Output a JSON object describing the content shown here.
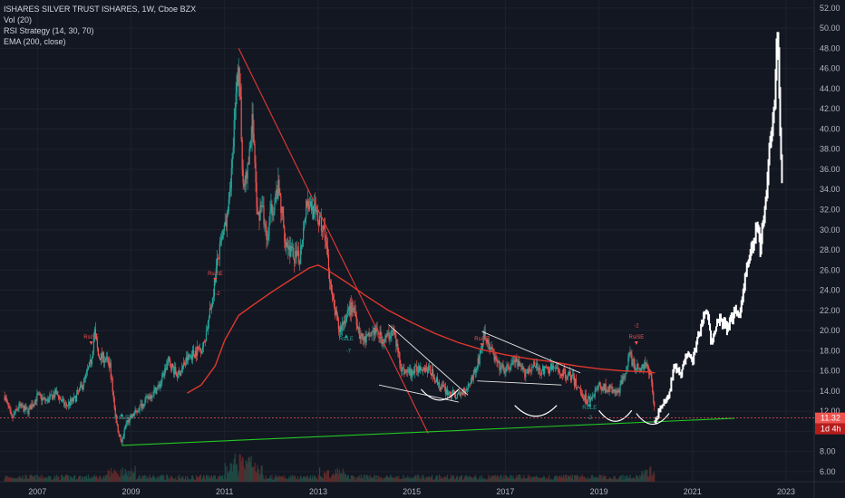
{
  "legend": {
    "title": "ISHARES SILVER TRUST ISHARES, 1W, Cboe BZX",
    "volume": "Vol (20)",
    "strategy": "RSI Strategy (14, 30, 70)",
    "ema": "EMA (200, close)"
  },
  "colors": {
    "background": "#131722",
    "up": "#26a69a",
    "down": "#ef5350",
    "ema": "#e0382b",
    "trend_red": "#e53935",
    "trend_green": "#22c822",
    "pattern": "#e8e8e8",
    "projection": "#ffffff",
    "price_line": "#ef5350"
  },
  "price_axis": {
    "ticks": [
      "52.00",
      "50.00",
      "48.00",
      "46.00",
      "44.00",
      "42.00",
      "40.00",
      "38.00",
      "36.00",
      "34.00",
      "32.00",
      "30.00",
      "28.00",
      "26.00",
      "24.00",
      "22.00",
      "20.00",
      "18.00",
      "16.00",
      "14.00",
      "12.00",
      "10.00",
      "8.00",
      "6.00"
    ],
    "last_price": "11.32",
    "countdown": "1d 4h"
  },
  "time_axis": {
    "ticks": [
      "2007",
      "2009",
      "2011",
      "2013",
      "2015",
      "2017",
      "2019",
      "2021",
      "2023"
    ]
  },
  "signals": [
    {
      "label": "RsiSE",
      "type": "sell",
      "date": 2008.15,
      "price": 19.2
    },
    {
      "label": "RsiLE",
      "type": "buy",
      "date": 2008.8,
      "price": 11.2
    },
    {
      "label": "RsiSE",
      "type": "sell",
      "date": 2010.8,
      "price": 25.5
    },
    {
      "label": "-2",
      "type": "sell",
      "date": 2010.85,
      "price": 23.5
    },
    {
      "label": "RsiLE",
      "type": "buy",
      "date": 2013.6,
      "price": 19.0
    },
    {
      "label": "-7",
      "type": "buy",
      "date": 2013.65,
      "price": 17.8
    },
    {
      "label": "RsiSE",
      "type": "sell",
      "date": 2016.5,
      "price": 19.0
    },
    {
      "label": "RsiLE",
      "type": "buy",
      "date": 2018.8,
      "price": 12.2
    },
    {
      "label": "-2",
      "type": "buy",
      "date": 2018.8,
      "price": 11.2
    },
    {
      "label": "-2",
      "type": "sell",
      "date": 2019.8,
      "price": 20.3
    },
    {
      "label": "RsiSE",
      "type": "sell",
      "date": 2019.8,
      "price": 19.2
    }
  ],
  "chart_data": {
    "type": "candlestick",
    "x_unit": "year",
    "xlim": [
      2006.2,
      2023.6
    ],
    "ylim": [
      5.0,
      52.8
    ],
    "grid": true,
    "series": [
      {
        "name": "ISHARES SILVER TRUST ISHARES",
        "type": "candlestick",
        "close_path": [
          [
            2006.3,
            13.5
          ],
          [
            2006.45,
            11.2
          ],
          [
            2006.6,
            12.5
          ],
          [
            2006.8,
            12.0
          ],
          [
            2007.0,
            13.5
          ],
          [
            2007.2,
            13.0
          ],
          [
            2007.4,
            13.8
          ],
          [
            2007.6,
            12.5
          ],
          [
            2007.8,
            13.2
          ],
          [
            2008.0,
            15.0
          ],
          [
            2008.15,
            17.0
          ],
          [
            2008.22,
            20.0
          ],
          [
            2008.3,
            17.5
          ],
          [
            2008.45,
            17.2
          ],
          [
            2008.55,
            16.5
          ],
          [
            2008.62,
            13.5
          ],
          [
            2008.7,
            10.5
          ],
          [
            2008.8,
            8.8
          ],
          [
            2008.9,
            10.8
          ],
          [
            2009.0,
            11.3
          ],
          [
            2009.2,
            12.5
          ],
          [
            2009.4,
            13.5
          ],
          [
            2009.6,
            14.5
          ],
          [
            2009.8,
            17.0
          ],
          [
            2009.9,
            16.2
          ],
          [
            2010.0,
            15.5
          ],
          [
            2010.2,
            17.2
          ],
          [
            2010.4,
            18.0
          ],
          [
            2010.55,
            18.5
          ],
          [
            2010.7,
            22.0
          ],
          [
            2010.85,
            27.0
          ],
          [
            2011.0,
            30.0
          ],
          [
            2011.15,
            36.0
          ],
          [
            2011.3,
            47.0
          ],
          [
            2011.4,
            34.0
          ],
          [
            2011.5,
            36.0
          ],
          [
            2011.6,
            41.0
          ],
          [
            2011.7,
            31.0
          ],
          [
            2011.8,
            33.0
          ],
          [
            2011.9,
            28.5
          ],
          [
            2012.0,
            32.0
          ],
          [
            2012.15,
            34.0
          ],
          [
            2012.3,
            29.0
          ],
          [
            2012.45,
            27.5
          ],
          [
            2012.6,
            27.0
          ],
          [
            2012.75,
            33.0
          ],
          [
            2012.9,
            32.0
          ],
          [
            2013.0,
            31.0
          ],
          [
            2013.15,
            29.5
          ],
          [
            2013.3,
            23.0
          ],
          [
            2013.45,
            20.0
          ],
          [
            2013.6,
            21.5
          ],
          [
            2013.75,
            22.5
          ],
          [
            2013.9,
            19.5
          ],
          [
            2014.0,
            19.0
          ],
          [
            2014.2,
            20.0
          ],
          [
            2014.4,
            19.0
          ],
          [
            2014.6,
            20.0
          ],
          [
            2014.8,
            16.0
          ],
          [
            2015.0,
            15.8
          ],
          [
            2015.2,
            16.5
          ],
          [
            2015.4,
            16.0
          ],
          [
            2015.6,
            14.5
          ],
          [
            2015.8,
            13.8
          ],
          [
            2016.0,
            13.5
          ],
          [
            2016.2,
            14.5
          ],
          [
            2016.4,
            16.5
          ],
          [
            2016.55,
            19.5
          ],
          [
            2016.7,
            18.0
          ],
          [
            2016.85,
            16.5
          ],
          [
            2017.0,
            16.0
          ],
          [
            2017.2,
            17.0
          ],
          [
            2017.4,
            15.8
          ],
          [
            2017.6,
            16.5
          ],
          [
            2017.8,
            16.0
          ],
          [
            2018.0,
            16.3
          ],
          [
            2018.2,
            15.8
          ],
          [
            2018.4,
            15.5
          ],
          [
            2018.6,
            14.0
          ],
          [
            2018.75,
            13.0
          ],
          [
            2018.9,
            13.8
          ],
          [
            2019.0,
            14.5
          ],
          [
            2019.2,
            14.2
          ],
          [
            2019.4,
            13.8
          ],
          [
            2019.5,
            15.0
          ],
          [
            2019.65,
            17.5
          ],
          [
            2019.8,
            16.2
          ],
          [
            2019.95,
            16.5
          ],
          [
            2020.1,
            16.0
          ],
          [
            2020.2,
            11.4
          ]
        ]
      },
      {
        "name": "EMA (200, close)",
        "type": "line",
        "points": [
          [
            2010.2,
            13.8
          ],
          [
            2010.5,
            14.6
          ],
          [
            2010.8,
            16.5
          ],
          [
            2011.0,
            19.0
          ],
          [
            2011.3,
            21.5
          ],
          [
            2011.6,
            22.5
          ],
          [
            2012.0,
            23.8
          ],
          [
            2012.4,
            25.0
          ],
          [
            2012.8,
            26.2
          ],
          [
            2013.0,
            26.5
          ],
          [
            2013.2,
            26.0
          ],
          [
            2013.6,
            24.8
          ],
          [
            2014.0,
            23.5
          ],
          [
            2014.5,
            22.0
          ],
          [
            2015.0,
            20.8
          ],
          [
            2015.5,
            19.7
          ],
          [
            2016.0,
            18.8
          ],
          [
            2016.5,
            18.1
          ],
          [
            2017.0,
            17.6
          ],
          [
            2017.5,
            17.2
          ],
          [
            2018.0,
            16.9
          ],
          [
            2018.5,
            16.5
          ],
          [
            2019.0,
            16.2
          ],
          [
            2019.5,
            16.0
          ],
          [
            2020.0,
            15.9
          ],
          [
            2020.2,
            15.8
          ]
        ]
      },
      {
        "name": "projection",
        "type": "line",
        "points": [
          [
            2020.2,
            10.9
          ],
          [
            2020.35,
            12.8
          ],
          [
            2020.5,
            13.5
          ],
          [
            2020.6,
            16.5
          ],
          [
            2020.75,
            15.5
          ],
          [
            2020.9,
            18.0
          ],
          [
            2021.0,
            17.0
          ],
          [
            2021.15,
            20.0
          ],
          [
            2021.3,
            22.0
          ],
          [
            2021.4,
            19.0
          ],
          [
            2021.5,
            20.5
          ],
          [
            2021.6,
            21.0
          ],
          [
            2021.75,
            20.2
          ],
          [
            2021.9,
            22.0
          ],
          [
            2022.0,
            21.5
          ],
          [
            2022.15,
            26.0
          ],
          [
            2022.3,
            28.5
          ],
          [
            2022.4,
            31.0
          ],
          [
            2022.45,
            28.0
          ],
          [
            2022.55,
            32.5
          ],
          [
            2022.65,
            38.0
          ],
          [
            2022.75,
            42.0
          ],
          [
            2022.82,
            50.5
          ],
          [
            2022.88,
            38.0
          ],
          [
            2022.92,
            34.5
          ]
        ]
      },
      {
        "name": "red trendline",
        "type": "line",
        "points": [
          [
            2011.3,
            48.0
          ],
          [
            2015.35,
            9.8
          ]
        ]
      },
      {
        "name": "green trendline",
        "type": "line",
        "points": [
          [
            2008.8,
            8.6
          ],
          [
            2021.9,
            11.3
          ]
        ]
      },
      {
        "name": "pattern lines",
        "type": "segments",
        "segments": [
          [
            [
              2014.5,
              20.6
            ],
            [
              2016.2,
              13.6
            ]
          ],
          [
            [
              2014.3,
              14.6
            ],
            [
              2016.0,
              12.9
            ]
          ],
          [
            [
              2016.5,
              19.9
            ],
            [
              2018.6,
              15.8
            ]
          ],
          [
            [
              2016.4,
              15.0
            ],
            [
              2018.2,
              14.6
            ]
          ]
        ]
      },
      {
        "name": "cup arcs",
        "type": "arcs",
        "arcs": [
          {
            "x1": 2015.2,
            "x2": 2016.0,
            "y_mid": 13.1
          },
          {
            "x1": 2017.2,
            "x2": 2018.1,
            "y_mid": 11.5
          },
          {
            "x1": 2019.0,
            "x2": 2019.7,
            "y_mid": 11.0
          },
          {
            "x1": 2019.8,
            "x2": 2020.5,
            "y_mid": 10.7
          }
        ]
      }
    ],
    "volume": {
      "name": "Vol (20)",
      "spikes": [
        [
          2008.8,
          0.6
        ],
        [
          2011.3,
          1.0
        ],
        [
          2011.5,
          0.8
        ],
        [
          2013.3,
          0.5
        ],
        [
          2020.2,
          0.7
        ]
      ]
    }
  }
}
